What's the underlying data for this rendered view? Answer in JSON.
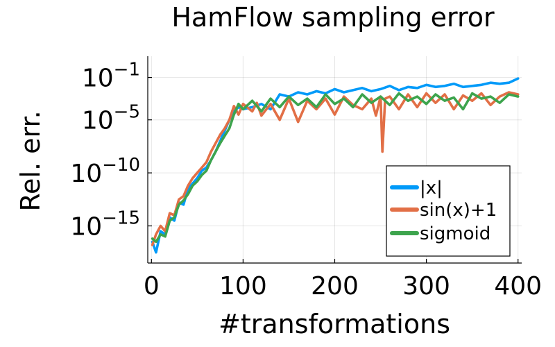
{
  "chart_data": {
    "type": "line",
    "title": "HamFlow sampling error",
    "xlabel": "#transformations",
    "ylabel": "Rel. err.",
    "xlim": [
      -4,
      404
    ],
    "ylim_log10": [
      -18.5,
      1
    ],
    "xscale": "linear",
    "yscale": "log10",
    "grid": true,
    "legend_position": "bottom-right",
    "x_ticks": [
      {
        "value": 0,
        "label": "0"
      },
      {
        "value": 100,
        "label": "100"
      },
      {
        "value": 200,
        "label": "200"
      },
      {
        "value": 300,
        "label": "300"
      },
      {
        "value": 400,
        "label": "400"
      }
    ],
    "y_ticks": [
      {
        "exp": -1,
        "base": "10",
        "sup": "−1"
      },
      {
        "exp": -5,
        "base": "10",
        "sup": "−5"
      },
      {
        "exp": -10,
        "base": "10",
        "sup": "−10"
      },
      {
        "exp": -15,
        "base": "10",
        "sup": "−15"
      }
    ],
    "series": [
      {
        "name": "|x|",
        "color": "#009af9",
        "x": [
          1,
          5,
          10,
          15,
          20,
          25,
          30,
          35,
          40,
          45,
          50,
          55,
          60,
          65,
          70,
          75,
          80,
          85,
          90,
          95,
          100,
          110,
          120,
          130,
          140,
          150,
          160,
          170,
          180,
          190,
          200,
          210,
          220,
          230,
          240,
          250,
          260,
          270,
          280,
          290,
          300,
          310,
          320,
          330,
          340,
          350,
          360,
          370,
          380,
          390,
          400
        ],
        "log10y": [
          -16.5,
          -17.5,
          -15.5,
          -15.8,
          -14.2,
          -14.5,
          -12.8,
          -13.0,
          -11.5,
          -11.0,
          -10.5,
          -9.8,
          -9.5,
          -8.8,
          -8.0,
          -7.0,
          -6.0,
          -5.0,
          -4.2,
          -3.8,
          -4.0,
          -3.8,
          -3.5,
          -4.0,
          -2.6,
          -2.8,
          -2.4,
          -2.6,
          -2.3,
          -2.5,
          -2.1,
          -2.4,
          -2.2,
          -2.0,
          -2.3,
          -2.1,
          -1.8,
          -2.2,
          -1.9,
          -2.0,
          -1.7,
          -1.9,
          -1.8,
          -1.6,
          -1.9,
          -1.8,
          -1.7,
          -1.5,
          -1.6,
          -1.5,
          -1.1
        ]
      },
      {
        "name": "sin(x)+1",
        "color": "#e26f46",
        "x": [
          1,
          5,
          10,
          15,
          20,
          25,
          30,
          35,
          40,
          45,
          50,
          55,
          60,
          65,
          70,
          75,
          80,
          85,
          90,
          95,
          100,
          110,
          115,
          120,
          130,
          140,
          150,
          160,
          170,
          180,
          190,
          200,
          210,
          220,
          230,
          240,
          245,
          250,
          252,
          255,
          260,
          270,
          280,
          290,
          300,
          310,
          320,
          330,
          340,
          350,
          360,
          370,
          380,
          390,
          400
        ],
        "log10y": [
          -16.8,
          -15.8,
          -15.0,
          -15.5,
          -13.8,
          -14.0,
          -12.5,
          -12.2,
          -11.2,
          -10.5,
          -10.0,
          -9.5,
          -9.0,
          -8.0,
          -7.2,
          -6.4,
          -5.8,
          -5.0,
          -3.7,
          -4.5,
          -3.5,
          -4.2,
          -3.4,
          -4.6,
          -3.5,
          -5.0,
          -3.0,
          -5.2,
          -3.2,
          -4.0,
          -3.0,
          -4.5,
          -2.8,
          -3.6,
          -4.0,
          -3.0,
          -4.6,
          -2.8,
          -8.0,
          -3.0,
          -2.8,
          -4.0,
          -2.6,
          -3.8,
          -2.5,
          -3.4,
          -2.6,
          -4.0,
          -2.7,
          -3.2,
          -2.5,
          -3.6,
          -2.8,
          -2.4,
          -2.6
        ]
      },
      {
        "name": "sigmoid",
        "color": "#3da44d",
        "x": [
          1,
          5,
          10,
          15,
          20,
          25,
          30,
          35,
          40,
          45,
          50,
          55,
          60,
          65,
          70,
          75,
          80,
          85,
          90,
          95,
          100,
          110,
          120,
          130,
          140,
          150,
          160,
          170,
          180,
          190,
          200,
          210,
          220,
          230,
          240,
          250,
          260,
          270,
          280,
          290,
          300,
          310,
          320,
          330,
          340,
          350,
          360,
          370,
          380,
          390,
          400
        ],
        "log10y": [
          -16.2,
          -16.5,
          -15.8,
          -16.0,
          -14.5,
          -14.2,
          -13.0,
          -12.6,
          -12.0,
          -11.2,
          -10.8,
          -10.2,
          -9.8,
          -8.8,
          -8.0,
          -7.2,
          -6.5,
          -5.8,
          -4.5,
          -3.5,
          -4.0,
          -3.2,
          -4.2,
          -3.0,
          -3.8,
          -2.8,
          -3.6,
          -3.0,
          -3.8,
          -2.6,
          -3.5,
          -3.0,
          -3.8,
          -2.6,
          -3.4,
          -2.8,
          -3.6,
          -2.5,
          -3.2,
          -2.8,
          -3.5,
          -2.6,
          -3.2,
          -2.9,
          -4.0,
          -2.5,
          -3.0,
          -2.8,
          -3.4,
          -2.6,
          -2.8
        ]
      }
    ]
  }
}
